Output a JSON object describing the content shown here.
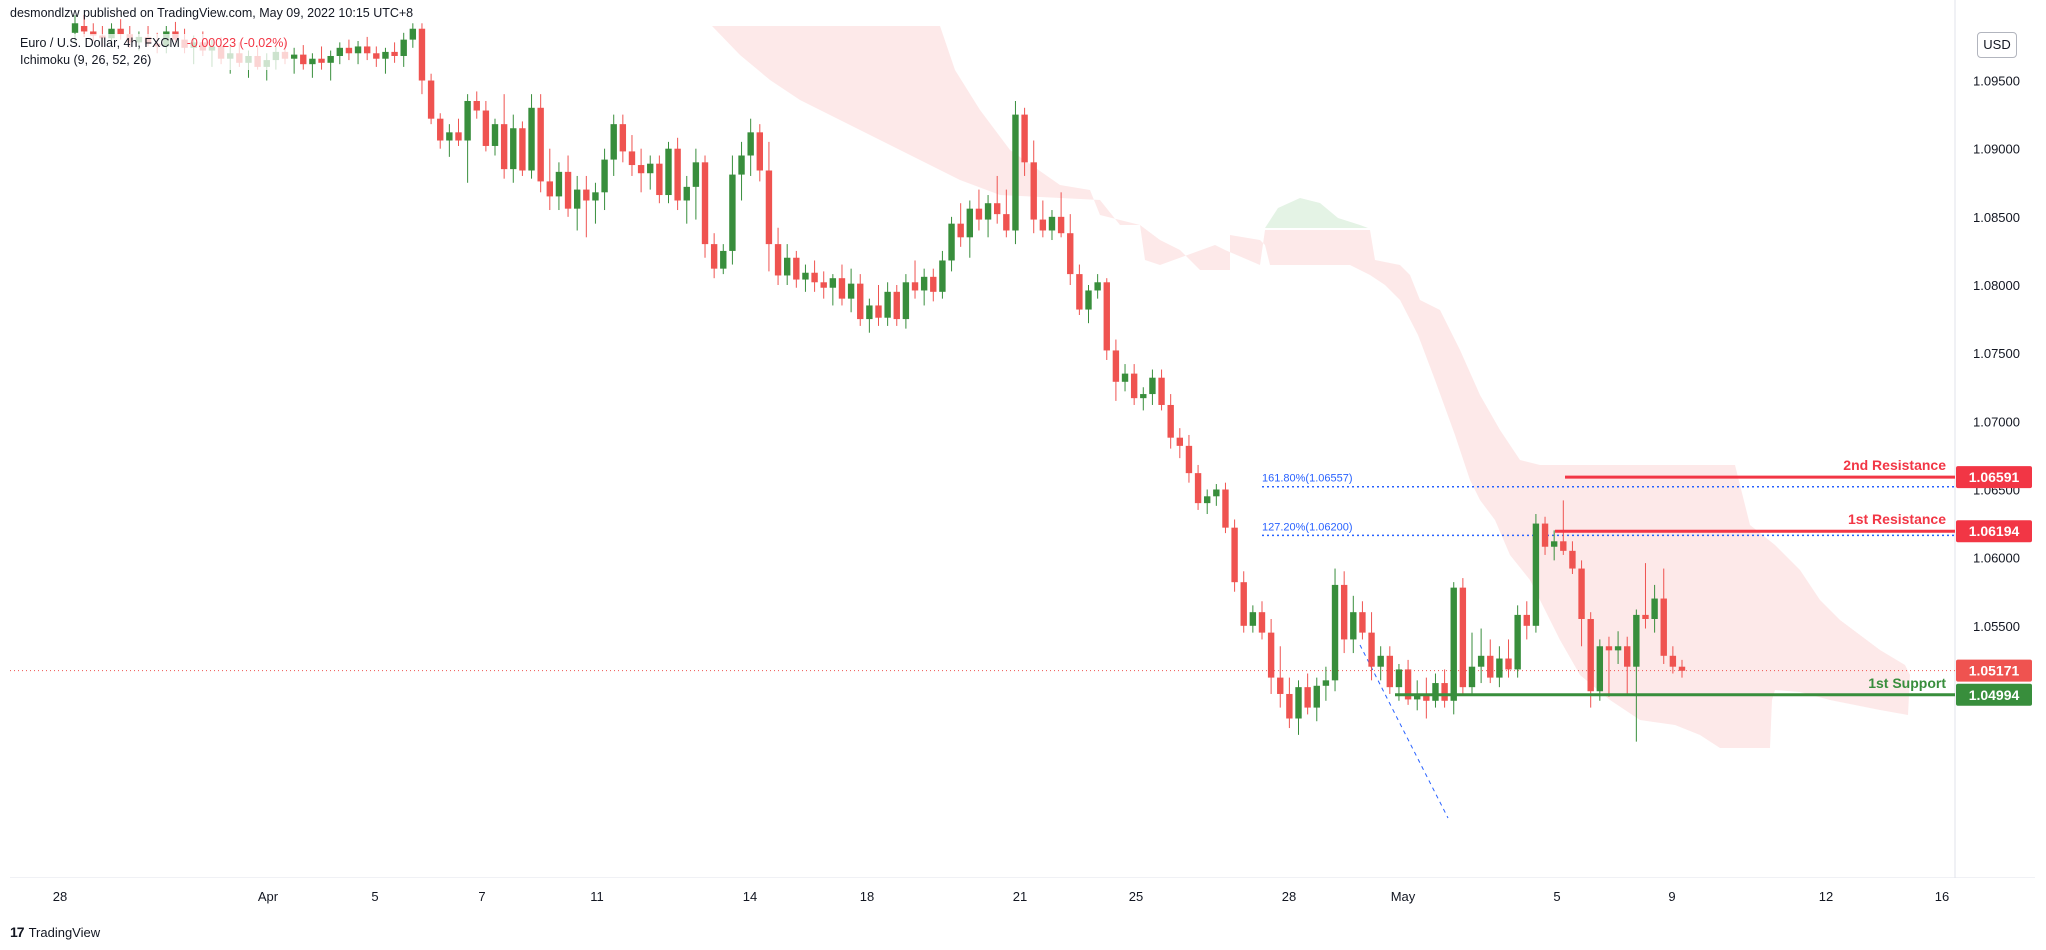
{
  "header": {
    "publisher_text": "desmondlzw published on TradingView.com, May 09, 2022 10:15 UTC+8"
  },
  "legend": {
    "symbol": "Euro / U.S. Dollar, 4h, FXCM",
    "change": "-0.00023 (-0.02%)",
    "indicator": "Ichimoku (9, 26, 52, 26)"
  },
  "currency_button": "USD",
  "footer": {
    "logo_mark": "17",
    "brand": "TradingView"
  },
  "colors": {
    "up": "#388e3c",
    "down": "#ef5350",
    "resistance": "#f23645",
    "support": "#388e3c",
    "fib": "#2962ff"
  },
  "chart_data": {
    "type": "candlestick",
    "timeframe": "4h",
    "symbol": "EURUSD",
    "ylim": [
      1.0365,
      1.099
    ],
    "y_ticks": [
      "1.09500",
      "1.09000",
      "1.08500",
      "1.08000",
      "1.07500",
      "1.07000",
      "1.06500",
      "1.06000",
      "1.05500"
    ],
    "x_ticks": [
      "28",
      "Apr",
      "5",
      "7",
      "11",
      "14",
      "18",
      "21",
      "25",
      "28",
      "May",
      "5",
      "9",
      "12",
      "16"
    ],
    "price_labels": [
      {
        "label": "2nd Resistance",
        "value": "1.06591",
        "kind": "resistance"
      },
      {
        "label": "1st Resistance",
        "value": "1.06194",
        "kind": "resistance"
      },
      {
        "label": "",
        "value": "1.05171",
        "kind": "last"
      },
      {
        "label": "1st Support",
        "value": "1.04994",
        "kind": "support"
      }
    ],
    "fib_levels": [
      {
        "label": "161.80%(1.06557)",
        "value": 1.06557
      },
      {
        "label": "127.20%(1.06200)",
        "value": 1.062
      }
    ],
    "candles": [
      [
        1.0985,
        1.0998,
        1.0978,
        1.0992
      ],
      [
        1.099,
        1.0998,
        1.0982,
        1.0986
      ],
      [
        1.0986,
        1.0992,
        1.0979,
        1.0983
      ],
      [
        1.0983,
        1.099,
        1.0975,
        1.0981
      ],
      [
        1.0981,
        1.0992,
        1.0975,
        1.0988
      ],
      [
        1.0988,
        1.0995,
        1.098,
        1.0984
      ],
      [
        1.0984,
        1.099,
        1.0974,
        1.0978
      ],
      [
        1.0978,
        1.0986,
        1.0972,
        1.0982
      ],
      [
        1.0982,
        1.099,
        1.0975,
        1.0977
      ],
      [
        1.0977,
        1.0985,
        1.097,
        1.0975
      ],
      [
        1.0975,
        1.099,
        1.097,
        1.0986
      ],
      [
        1.0986,
        1.0993,
        1.0978,
        1.098
      ],
      [
        1.098,
        1.0988,
        1.097,
        1.0974
      ],
      [
        1.0974,
        1.0983,
        1.0962,
        1.0978
      ],
      [
        1.0978,
        1.0986,
        1.0968,
        1.0972
      ],
      [
        1.0972,
        1.098,
        1.096,
        1.0975
      ],
      [
        1.0975,
        1.0982,
        1.0962,
        1.0966
      ],
      [
        1.0966,
        1.0975,
        1.0955,
        1.097
      ],
      [
        1.097,
        1.0978,
        1.096,
        1.0963
      ],
      [
        1.0963,
        1.0972,
        1.0952,
        1.0968
      ],
      [
        1.0968,
        1.0976,
        1.0958,
        1.096
      ],
      [
        1.096,
        1.097,
        1.095,
        1.0965
      ],
      [
        1.0965,
        1.0975,
        1.0958,
        1.0971
      ],
      [
        1.0971,
        1.0978,
        1.0962,
        1.0966
      ],
      [
        1.0966,
        1.0974,
        1.0955,
        1.0969
      ],
      [
        1.0969,
        1.0976,
        1.0958,
        1.0962
      ],
      [
        1.0962,
        1.097,
        1.0952,
        1.0966
      ],
      [
        1.0966,
        1.0975,
        1.0958,
        1.0963
      ],
      [
        1.0963,
        1.0972,
        1.095,
        1.0968
      ],
      [
        1.0968,
        1.0978,
        1.0962,
        1.0974
      ],
      [
        1.0974,
        1.098,
        1.0965,
        1.097
      ],
      [
        1.097,
        1.0979,
        1.0962,
        1.0975
      ],
      [
        1.0975,
        1.0982,
        1.0965,
        1.097
      ],
      [
        1.097,
        1.0975,
        1.096,
        1.0966
      ],
      [
        1.0966,
        1.0974,
        1.0955,
        1.0971
      ],
      [
        1.0971,
        1.0978,
        1.0963,
        1.0968
      ],
      [
        1.0968,
        1.0985,
        1.096,
        1.098
      ],
      [
        1.098,
        1.0992,
        1.0974,
        1.0988
      ],
      [
        1.0988,
        1.0992,
        1.094,
        1.095
      ],
      [
        1.095,
        1.0955,
        1.0918,
        1.0922
      ],
      [
        1.0922,
        1.0926,
        1.09,
        1.0906
      ],
      [
        1.0906,
        1.0918,
        1.0894,
        1.0912
      ],
      [
        1.0912,
        1.0922,
        1.0902,
        1.0906
      ],
      [
        1.0906,
        1.094,
        1.0875,
        1.0935
      ],
      [
        1.0935,
        1.0942,
        1.0922,
        1.0928
      ],
      [
        1.0928,
        1.0935,
        1.0898,
        1.0902
      ],
      [
        1.0902,
        1.0922,
        1.0895,
        1.0918
      ],
      [
        1.0918,
        1.094,
        1.0878,
        1.0885
      ],
      [
        1.0885,
        1.0925,
        1.0875,
        1.0915
      ],
      [
        1.0915,
        1.092,
        1.088,
        1.0884
      ],
      [
        1.0884,
        1.094,
        1.0878,
        1.093
      ],
      [
        1.093,
        1.094,
        1.0868,
        1.0876
      ],
      [
        1.0876,
        1.09,
        1.0855,
        1.0865
      ],
      [
        1.0865,
        1.089,
        1.0855,
        1.0883
      ],
      [
        1.0883,
        1.0895,
        1.085,
        1.0856
      ],
      [
        1.0856,
        1.088,
        1.084,
        1.087
      ],
      [
        1.087,
        1.088,
        1.0835,
        1.0862
      ],
      [
        1.0862,
        1.0875,
        1.0845,
        1.0868
      ],
      [
        1.0868,
        1.09,
        1.0855,
        1.0892
      ],
      [
        1.0892,
        1.0925,
        1.088,
        1.0918
      ],
      [
        1.0918,
        1.0925,
        1.089,
        1.0898
      ],
      [
        1.0898,
        1.091,
        1.088,
        1.0888
      ],
      [
        1.0888,
        1.09,
        1.0868,
        1.0882
      ],
      [
        1.0882,
        1.0895,
        1.087,
        1.0889
      ],
      [
        1.0889,
        1.0895,
        1.086,
        1.0866
      ],
      [
        1.0866,
        1.0905,
        1.086,
        1.09
      ],
      [
        1.09,
        1.0908,
        1.0855,
        1.0862
      ],
      [
        1.0862,
        1.088,
        1.0845,
        1.0872
      ],
      [
        1.0872,
        1.09,
        1.0848,
        1.089
      ],
      [
        1.089,
        1.0895,
        1.082,
        1.083
      ],
      [
        1.083,
        1.0838,
        1.0805,
        1.0812
      ],
      [
        1.0812,
        1.083,
        1.0808,
        1.0825
      ],
      [
        1.0825,
        1.0895,
        1.0815,
        1.0881
      ],
      [
        1.0881,
        1.0905,
        1.0862,
        1.0895
      ],
      [
        1.0895,
        1.0922,
        1.088,
        1.0912
      ],
      [
        1.0912,
        1.0918,
        1.0876,
        1.0884
      ],
      [
        1.0884,
        1.0905,
        1.081,
        1.083
      ],
      [
        1.083,
        1.0842,
        1.08,
        1.0807
      ],
      [
        1.0807,
        1.083,
        1.08,
        1.082
      ],
      [
        1.082,
        1.0825,
        1.0798,
        1.0804
      ],
      [
        1.0804,
        1.0815,
        1.0795,
        1.0809
      ],
      [
        1.0809,
        1.0818,
        1.0795,
        1.0802
      ],
      [
        1.0802,
        1.081,
        1.079,
        1.0798
      ],
      [
        1.0798,
        1.0808,
        1.0785,
        1.0805
      ],
      [
        1.0805,
        1.0815,
        1.0785,
        1.079
      ],
      [
        1.079,
        1.0812,
        1.078,
        1.0801
      ],
      [
        1.0801,
        1.0808,
        1.077,
        1.0775
      ],
      [
        1.0775,
        1.079,
        1.0765,
        1.0785
      ],
      [
        1.0785,
        1.08,
        1.077,
        1.0776
      ],
      [
        1.0776,
        1.0802,
        1.077,
        1.0795
      ],
      [
        1.0795,
        1.08,
        1.077,
        1.0775
      ],
      [
        1.0775,
        1.0808,
        1.0768,
        1.0802
      ],
      [
        1.0802,
        1.0818,
        1.079,
        1.0796
      ],
      [
        1.0796,
        1.0812,
        1.0785,
        1.0806
      ],
      [
        1.0806,
        1.0812,
        1.0788,
        1.0795
      ],
      [
        1.0795,
        1.0825,
        1.079,
        1.0818
      ],
      [
        1.0818,
        1.085,
        1.081,
        1.0845
      ],
      [
        1.0845,
        1.086,
        1.0828,
        1.0835
      ],
      [
        1.0835,
        1.0862,
        1.082,
        1.0856
      ],
      [
        1.0856,
        1.087,
        1.084,
        1.0848
      ],
      [
        1.0848,
        1.0866,
        1.0835,
        1.086
      ],
      [
        1.086,
        1.088,
        1.0845,
        1.0852
      ],
      [
        1.0852,
        1.087,
        1.0835,
        1.084
      ],
      [
        1.084,
        1.0935,
        1.083,
        1.0925
      ],
      [
        1.0925,
        1.093,
        1.088,
        1.089
      ],
      [
        1.089,
        1.0906,
        1.0838,
        1.0848
      ],
      [
        1.0848,
        1.0862,
        1.0835,
        1.084
      ],
      [
        1.084,
        1.0855,
        1.0833,
        1.085
      ],
      [
        1.085,
        1.0868,
        1.0835,
        1.0838
      ],
      [
        1.0838,
        1.0852,
        1.08,
        1.0808
      ],
      [
        1.0808,
        1.0815,
        1.0778,
        1.0782
      ],
      [
        1.0782,
        1.08,
        1.0772,
        1.0796
      ],
      [
        1.0796,
        1.0808,
        1.079,
        1.0802
      ],
      [
        1.0802,
        1.0805,
        1.0745,
        1.0752
      ],
      [
        1.0752,
        1.076,
        1.0715,
        1.0729
      ],
      [
        1.0729,
        1.0742,
        1.0722,
        1.0735
      ],
      [
        1.0735,
        1.0742,
        1.0712,
        1.0717
      ],
      [
        1.0717,
        1.0725,
        1.0708,
        1.072
      ],
      [
        1.072,
        1.0738,
        1.0712,
        1.0732
      ],
      [
        1.0732,
        1.0738,
        1.0708,
        1.0712
      ],
      [
        1.0712,
        1.072,
        1.068,
        1.0688
      ],
      [
        1.0688,
        1.0695,
        1.0673,
        1.0682
      ],
      [
        1.0682,
        1.069,
        1.0655,
        1.0662
      ],
      [
        1.0662,
        1.0668,
        1.0635,
        1.064
      ],
      [
        1.064,
        1.065,
        1.0632,
        1.0645
      ],
      [
        1.0645,
        1.0654,
        1.0638,
        1.065
      ],
      [
        1.065,
        1.0655,
        1.0618,
        1.0622
      ],
      [
        1.0622,
        1.0628,
        1.0575,
        1.0582
      ],
      [
        1.0582,
        1.059,
        1.0545,
        1.055
      ],
      [
        1.055,
        1.0565,
        1.0545,
        1.056
      ],
      [
        1.056,
        1.0568,
        1.054,
        1.0545
      ],
      [
        1.0545,
        1.0555,
        1.05,
        1.0512
      ],
      [
        1.0512,
        1.0535,
        1.049,
        1.05
      ],
      [
        1.05,
        1.0512,
        1.0475,
        1.0482
      ],
      [
        1.0482,
        1.051,
        1.047,
        1.0505
      ],
      [
        1.0505,
        1.0515,
        1.0485,
        1.049
      ],
      [
        1.049,
        1.0512,
        1.048,
        1.0506
      ],
      [
        1.0506,
        1.052,
        1.0495,
        1.051
      ],
      [
        1.051,
        1.0592,
        1.0502,
        1.058
      ],
      [
        1.058,
        1.059,
        1.053,
        1.054
      ],
      [
        1.054,
        1.0572,
        1.053,
        1.056
      ],
      [
        1.056,
        1.0568,
        1.054,
        1.0545
      ],
      [
        1.0545,
        1.056,
        1.051,
        1.052
      ],
      [
        1.052,
        1.0535,
        1.051,
        1.0528
      ],
      [
        1.0528,
        1.0535,
        1.05,
        1.0505
      ],
      [
        1.0505,
        1.0522,
        1.0495,
        1.0518
      ],
      [
        1.0518,
        1.0525,
        1.0492,
        1.0496
      ],
      [
        1.0496,
        1.051,
        1.0488,
        1.05
      ],
      [
        1.05,
        1.0512,
        1.0482,
        1.0495
      ],
      [
        1.0495,
        1.0515,
        1.049,
        1.0508
      ],
      [
        1.0508,
        1.0518,
        1.049,
        1.0495
      ],
      [
        1.0495,
        1.0582,
        1.0485,
        1.0578
      ],
      [
        1.0578,
        1.0585,
        1.05,
        1.0505
      ],
      [
        1.0505,
        1.0545,
        1.05,
        1.052
      ],
      [
        1.052,
        1.0548,
        1.0508,
        1.0528
      ],
      [
        1.0528,
        1.054,
        1.0508,
        1.0512
      ],
      [
        1.0512,
        1.0535,
        1.0505,
        1.0526
      ],
      [
        1.0526,
        1.054,
        1.0512,
        1.0518
      ],
      [
        1.0518,
        1.0565,
        1.0512,
        1.0558
      ],
      [
        1.0558,
        1.0568,
        1.054,
        1.055
      ],
      [
        1.055,
        1.0632,
        1.0545,
        1.0625
      ],
      [
        1.0625,
        1.063,
        1.0602,
        1.0608
      ],
      [
        1.0608,
        1.062,
        1.0598,
        1.0612
      ],
      [
        1.0612,
        1.0642,
        1.0602,
        1.0605
      ],
      [
        1.0605,
        1.0612,
        1.0588,
        1.0592
      ],
      [
        1.0592,
        1.0598,
        1.0535,
        1.0555
      ],
      [
        1.0555,
        1.056,
        1.049,
        1.0502
      ],
      [
        1.0502,
        1.054,
        1.0495,
        1.0535
      ],
      [
        1.0535,
        1.0542,
        1.0498,
        1.0532
      ],
      [
        1.0532,
        1.0546,
        1.0522,
        1.0535
      ],
      [
        1.0535,
        1.0542,
        1.05,
        1.052
      ],
      [
        1.052,
        1.0562,
        1.0465,
        1.0558
      ],
      [
        1.0558,
        1.0596,
        1.0548,
        1.0555
      ],
      [
        1.0555,
        1.058,
        1.0545,
        1.057
      ],
      [
        1.057,
        1.0592,
        1.0522,
        1.0528
      ],
      [
        1.0528,
        1.0535,
        1.0515,
        1.052
      ],
      [
        1.052,
        1.0525,
        1.0512,
        1.0517
      ]
    ]
  }
}
